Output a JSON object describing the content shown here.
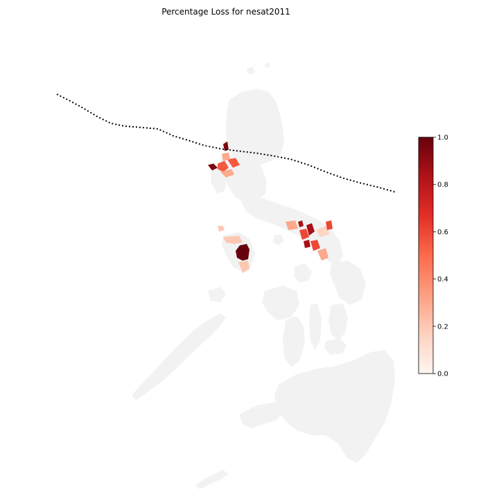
{
  "map": {
    "title": "Percentage Loss for nesat2011",
    "land_color": "#f2f2f2",
    "track_color": "#000000",
    "colormap": "Reds",
    "colormap_stops": [
      "#fff5f0",
      "#fdd2bf",
      "#fc9f81",
      "#fb6b4b",
      "#e32f27",
      "#b11218",
      "#67000d"
    ],
    "colorbar": {
      "min": 0.0,
      "max": 1.0,
      "ticks": [
        "0.0",
        "0.2",
        "0.4",
        "0.6",
        "0.8",
        "1.0"
      ]
    },
    "loss_levels": {
      "north_luzon_high": 0.95,
      "north_luzon_mid": 0.55,
      "north_luzon_low": 0.3,
      "mindoro_max": 1.0,
      "mindoro_low": 0.2,
      "bicol_high": 0.85,
      "bicol_mid": 0.6,
      "bicol_low": 0.3,
      "bicol_faint": 0.15
    }
  }
}
